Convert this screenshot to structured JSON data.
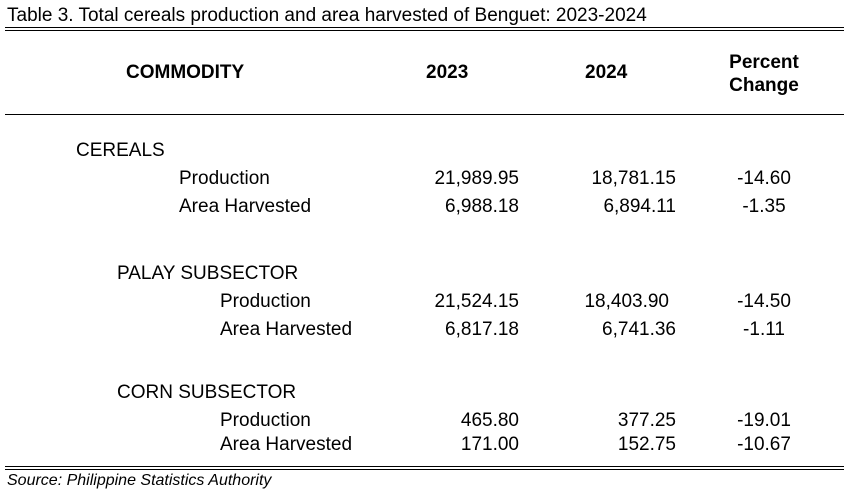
{
  "title": "Table 3. Total cereals production and area harvested of Benguet: 2023-2024",
  "headers": {
    "commodity": "COMMODITY",
    "year1": "2023",
    "year2": "2024",
    "change_line1": "Percent",
    "change_line2": "Change"
  },
  "sections": [
    {
      "name": "CEREALS",
      "rows": [
        {
          "label": "Production",
          "y2023": "21,989.95",
          "y2024": "18,781.15",
          "change": "-14.60"
        },
        {
          "label": "Area Harvested",
          "y2023": "6,988.18",
          "y2024": "6,894.11",
          "change": "-1.35"
        }
      ]
    },
    {
      "name": "PALAY SUBSECTOR",
      "rows": [
        {
          "label": "Production",
          "y2023": "21,524.15",
          "y2024": "18,403.90",
          "change": "-14.50"
        },
        {
          "label": "Area Harvested",
          "y2023": "6,817.18",
          "y2024": "6,741.36",
          "change": "-1.11"
        }
      ]
    },
    {
      "name": "CORN SUBSECTOR",
      "rows": [
        {
          "label": "Production",
          "y2023": "465.80",
          "y2024": "377.25",
          "change": "-19.01"
        },
        {
          "label": "Area Harvested",
          "y2023": "171.00",
          "y2024": "152.75",
          "change": "-10.67"
        }
      ]
    }
  ],
  "source": "Source: Philippine Statistics Authority"
}
